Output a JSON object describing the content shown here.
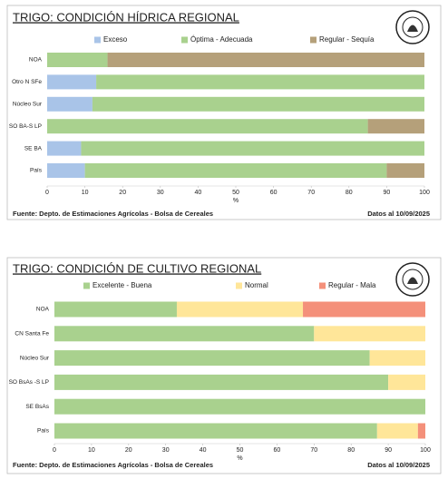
{
  "chart_data": [
    {
      "type": "bar",
      "orientation": "horizontal",
      "stacked": true,
      "title": "TRIGO: CONDICIÓN HÍDRICA REGIONAL",
      "categories": [
        "NOA",
        "Otro N SFe",
        "Núcleo Sur",
        "SO BA-S LP",
        "SE BA",
        "País"
      ],
      "series": [
        {
          "name": "Exceso",
          "color": "#a9c4e8",
          "values": [
            0,
            13,
            12,
            0,
            9,
            10
          ]
        },
        {
          "name": "Óptima - Adecuada",
          "color": "#a9d18e",
          "values": [
            16,
            87,
            88,
            85,
            91,
            80
          ]
        },
        {
          "name": "Regular - Sequía",
          "color": "#b5a07a",
          "values": [
            84,
            0,
            0,
            15,
            0,
            10
          ]
        }
      ],
      "xlim": [
        0,
        100
      ],
      "xticks": [
        0,
        10,
        20,
        30,
        40,
        50,
        60,
        70,
        80,
        90,
        100
      ],
      "xlabel": "%",
      "source": "Fuente: Depto. de Estimaciones Agrícolas - Bolsa de Cereales",
      "date": "Datos al 10/09/2025"
    },
    {
      "type": "bar",
      "orientation": "horizontal",
      "stacked": true,
      "title": "TRIGO: CONDICIÓN DE CULTIVO REGIONAL",
      "categories": [
        "NOA",
        "CN Santa Fe",
        "Núcleo Sur",
        "SO BsAs -S LP",
        "SE BsAs",
        "País"
      ],
      "series": [
        {
          "name": "Excelente - Buena",
          "color": "#a9d18e",
          "values": [
            33,
            70,
            85,
            90,
            100,
            87
          ]
        },
        {
          "name": "Normal",
          "color": "#ffe699",
          "values": [
            34,
            30,
            15,
            10,
            0,
            11
          ]
        },
        {
          "name": "Regular - Mala",
          "color": "#f4907a",
          "values": [
            33,
            0,
            0,
            0,
            0,
            2
          ]
        }
      ],
      "xlim": [
        0,
        100
      ],
      "xticks": [
        0,
        10,
        20,
        30,
        40,
        50,
        60,
        70,
        80,
        90,
        100
      ],
      "xlabel": "%",
      "source": "Fuente: Depto. de Estimaciones Agrícolas - Bolsa de Cereales",
      "date": "Datos al 10/09/2025"
    }
  ]
}
